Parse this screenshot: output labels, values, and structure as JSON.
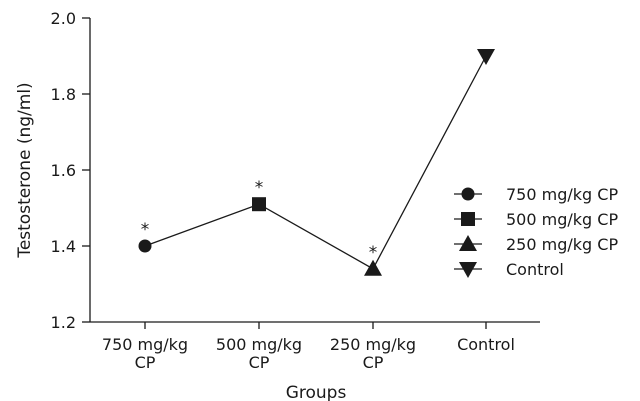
{
  "chart_data": {
    "type": "line",
    "xlabel": "Groups",
    "ylabel": "Testosterone (ng/ml)",
    "ylim": [
      1.2,
      2.0
    ],
    "yticks": [
      "1.2",
      "1.4",
      "1.6",
      "1.8",
      "2.0"
    ],
    "categories": [
      [
        "750 mg/kg",
        "CP"
      ],
      [
        "500 mg/kg",
        "CP"
      ],
      [
        "250 mg/kg",
        "CP"
      ],
      [
        "Control"
      ]
    ],
    "series": [
      {
        "values": [
          1.4,
          1.51,
          1.34,
          1.9
        ],
        "markers": [
          "circle",
          "square",
          "triangle-up",
          "triangle-down"
        ],
        "significance": [
          "*",
          "*",
          "*",
          ""
        ]
      }
    ],
    "legend": {
      "position": "right",
      "items": [
        {
          "label": "750 mg/kg CP",
          "marker": "circle"
        },
        {
          "label": "500 mg/kg CP",
          "marker": "square"
        },
        {
          "label": "250 mg/kg CP",
          "marker": "triangle-up"
        },
        {
          "label": "Control",
          "marker": "triangle-down"
        }
      ]
    },
    "grid": false,
    "color": "#1a1a1a"
  }
}
